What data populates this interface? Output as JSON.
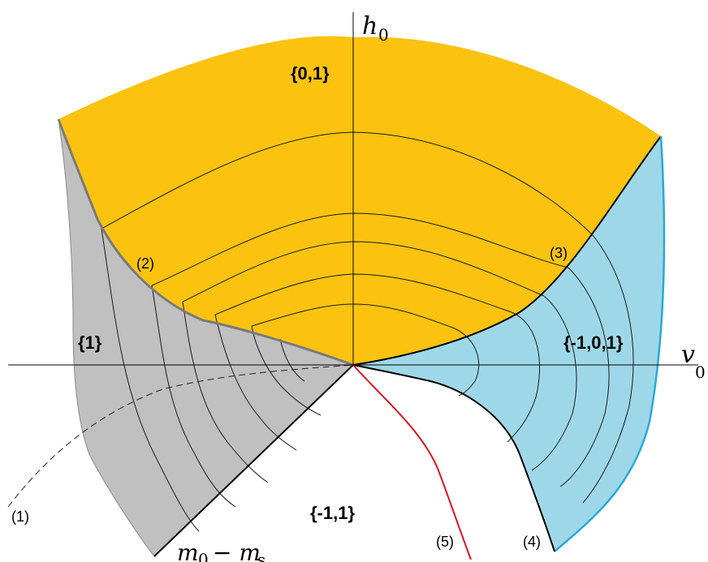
{
  "colors": {
    "region_01": "#fbc30f",
    "region_1": "#c0c0c0",
    "region_m101": "#9ed8e8",
    "boundary_gray": "#7a7a7a",
    "boundary_blue": "#29a9d8",
    "curve_5": "#e0141e",
    "contour": "#1a1a1a"
  },
  "regions": {
    "r01": "{0,1}",
    "r1": "{1}",
    "rm101": "{-1,0,1}",
    "rm11": "{-1,1}"
  },
  "curves": {
    "c1": "(1)",
    "c2": "(2)",
    "c3": "(3)",
    "c4": "(4)",
    "c5": "(5)"
  },
  "axes": {
    "h_main": "h",
    "h_sub": "0",
    "v_main": "v",
    "v_sub": "0",
    "m_main": "m",
    "m_sub": "0",
    "m_rest": "− m",
    "m_rest_sub": "s"
  }
}
